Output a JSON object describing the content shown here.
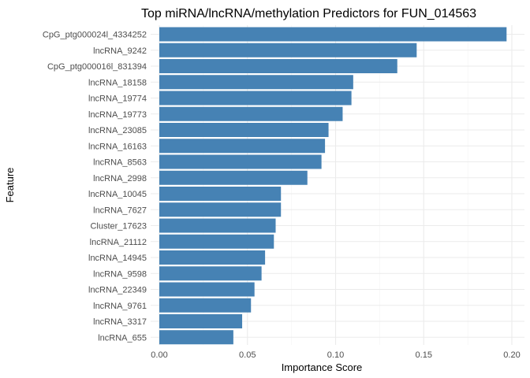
{
  "chart_data": {
    "type": "bar",
    "orientation": "horizontal",
    "title": "Top miRNA/lncRNA/methylation Predictors for FUN_014563",
    "xlabel": "Importance Score",
    "ylabel": "Feature",
    "xlim": [
      0,
      0.2
    ],
    "x_ticks": [
      "0.00",
      "0.05",
      "0.10",
      "0.15",
      "0.20"
    ],
    "grid": true,
    "bar_color": "#4682B4",
    "categories": [
      "CpG_ptg000024l_4334252",
      "lncRNA_9242",
      "CpG_ptg000016l_831394",
      "lncRNA_18158",
      "lncRNA_19774",
      "lncRNA_19773",
      "lncRNA_23085",
      "lncRNA_16163",
      "lncRNA_8563",
      "lncRNA_2998",
      "lncRNA_10045",
      "lncRNA_7627",
      "Cluster_17623",
      "lncRNA_21112",
      "lncRNA_14945",
      "lncRNA_9598",
      "lncRNA_22349",
      "lncRNA_9761",
      "lncRNA_3317",
      "lncRNA_655"
    ],
    "values": [
      0.197,
      0.146,
      0.135,
      0.11,
      0.109,
      0.104,
      0.096,
      0.094,
      0.092,
      0.084,
      0.069,
      0.069,
      0.066,
      0.065,
      0.06,
      0.058,
      0.054,
      0.052,
      0.047,
      0.042
    ]
  }
}
